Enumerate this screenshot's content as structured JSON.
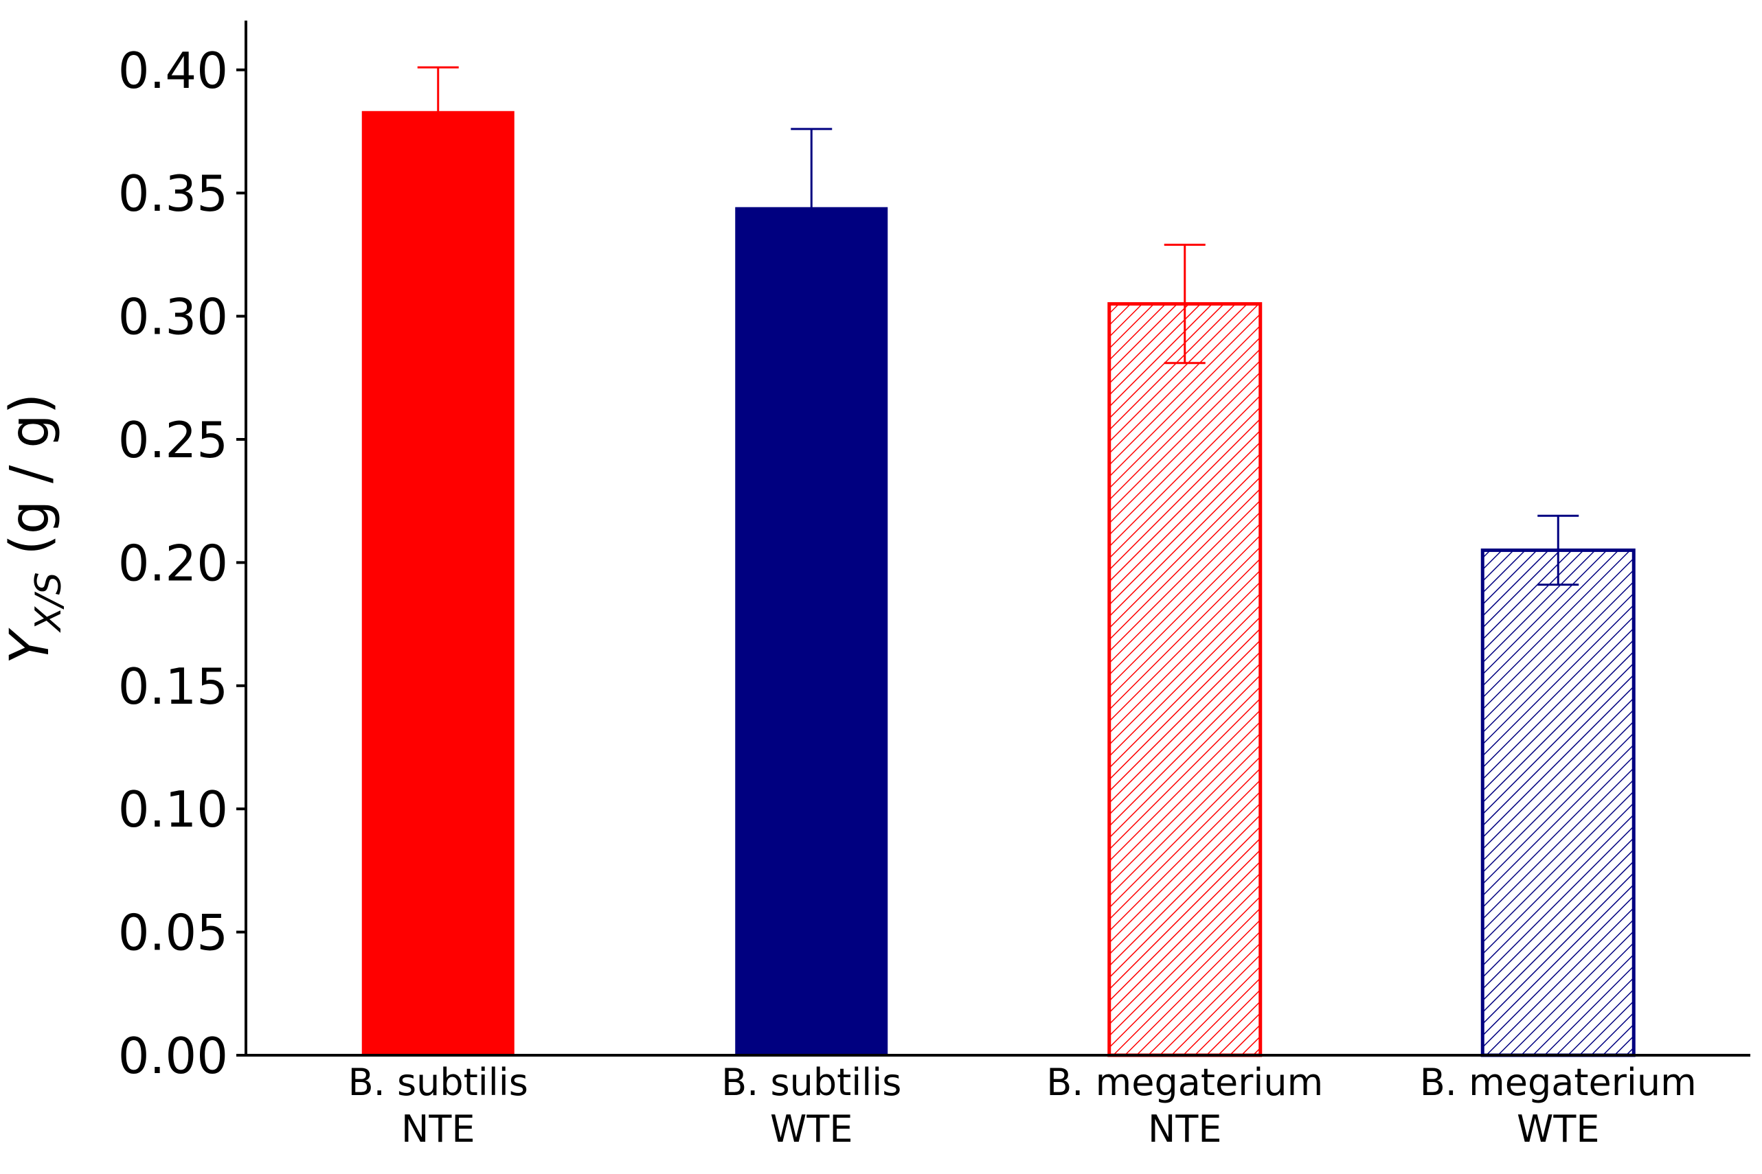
{
  "chart_data": {
    "type": "bar",
    "categories": [
      [
        "B. subtilis",
        "NTE"
      ],
      [
        "B. subtilis",
        "WTE"
      ],
      [
        "B. megaterium",
        "NTE"
      ],
      [
        "B. megaterium",
        "WTE"
      ]
    ],
    "values": [
      0.383,
      0.344,
      0.305,
      0.205
    ],
    "errors": [
      0.018,
      0.032,
      0.024,
      0.014
    ],
    "error_style": [
      "upper",
      "upper",
      "both",
      "both"
    ],
    "fill_style": [
      "solid",
      "solid",
      "hatched",
      "hatched"
    ],
    "colors": [
      "#ff0000",
      "#000080",
      "#ff0000",
      "#000080"
    ],
    "ylabel": {
      "main": "Y",
      "subscript": "X/S",
      "unit": " (g / g)"
    },
    "ylim": [
      0,
      0.42
    ],
    "yticks": [
      "0.00",
      "0.05",
      "0.10",
      "0.15",
      "0.20",
      "0.25",
      "0.30",
      "0.35",
      "0.40"
    ],
    "ytick_values": [
      0,
      0.05,
      0.1,
      0.15,
      0.2,
      0.25,
      0.3,
      0.35,
      0.4
    ],
    "grid": false,
    "legend": "none"
  }
}
